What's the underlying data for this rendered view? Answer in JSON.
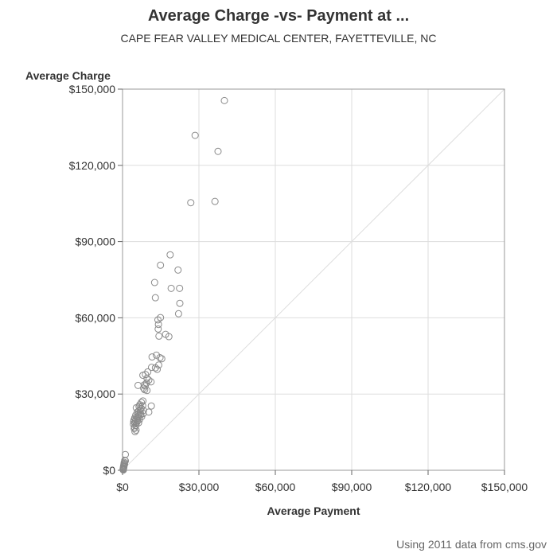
{
  "chart_data": {
    "type": "scatter",
    "title": "Average Charge -vs- Payment at ...",
    "subtitle": "CAPE FEAR VALLEY MEDICAL CENTER, FAYETTEVILLE, NC",
    "xlabel": "Average Payment",
    "ylabel": "Average Charge",
    "xlim": [
      0,
      150000
    ],
    "ylim": [
      0,
      150000
    ],
    "x_ticks": [
      0,
      30000,
      60000,
      90000,
      120000,
      150000
    ],
    "y_ticks": [
      0,
      30000,
      60000,
      90000,
      120000,
      150000
    ],
    "x_tick_labels": [
      "$0",
      "$30,000",
      "$60,000",
      "$90,000",
      "$120,000",
      "$150,000"
    ],
    "y_tick_labels": [
      "$0",
      "$30,000",
      "$60,000",
      "$90,000",
      "$120,000",
      "$150,000"
    ],
    "grid": true,
    "reference_line": "y = x",
    "colors": {
      "marker": "#8a8a8a",
      "grid": "#dddddd",
      "reference": "#dddddd",
      "frame": "#999999"
    },
    "points": [
      [
        40000,
        145500
      ],
      [
        28500,
        131800
      ],
      [
        37500,
        125500
      ],
      [
        26800,
        105300
      ],
      [
        36300,
        105800
      ],
      [
        18700,
        84800
      ],
      [
        14900,
        80700
      ],
      [
        21800,
        78800
      ],
      [
        12600,
        73900
      ],
      [
        19100,
        71600
      ],
      [
        22400,
        71600
      ],
      [
        12900,
        67900
      ],
      [
        22500,
        65700
      ],
      [
        14900,
        60100
      ],
      [
        22000,
        61600
      ],
      [
        13900,
        59200
      ],
      [
        14100,
        57400
      ],
      [
        14000,
        55600
      ],
      [
        16900,
        53500
      ],
      [
        18200,
        52600
      ],
      [
        14300,
        52800
      ],
      [
        13300,
        45300
      ],
      [
        14700,
        44300
      ],
      [
        11600,
        44600
      ],
      [
        15400,
        43900
      ],
      [
        14200,
        41400
      ],
      [
        11400,
        40500
      ],
      [
        12900,
        40300
      ],
      [
        13600,
        39700
      ],
      [
        9900,
        38700
      ],
      [
        9000,
        37700
      ],
      [
        8000,
        37400
      ],
      [
        9600,
        36200
      ],
      [
        10300,
        35500
      ],
      [
        11200,
        34800
      ],
      [
        9400,
        34300
      ],
      [
        8500,
        33600
      ],
      [
        8900,
        33200
      ],
      [
        6100,
        33400
      ],
      [
        8300,
        32300
      ],
      [
        8700,
        31700
      ],
      [
        9600,
        31400
      ],
      [
        8000,
        27300
      ],
      [
        7400,
        26700
      ],
      [
        6800,
        25800
      ],
      [
        7900,
        25400
      ],
      [
        6500,
        25100
      ],
      [
        11300,
        25300
      ],
      [
        5400,
        24600
      ],
      [
        7300,
        24400
      ],
      [
        6900,
        23900
      ],
      [
        8200,
        23600
      ],
      [
        6300,
        23300
      ],
      [
        5800,
        22900
      ],
      [
        10300,
        22900
      ],
      [
        7000,
        22600
      ],
      [
        8100,
        22300
      ],
      [
        6200,
        22000
      ],
      [
        7100,
        21800
      ],
      [
        5200,
        21700
      ],
      [
        6400,
        21300
      ],
      [
        7500,
        21100
      ],
      [
        5600,
        20900
      ],
      [
        4800,
        20600
      ],
      [
        6000,
        20400
      ],
      [
        5300,
        20100
      ],
      [
        6700,
        20000
      ],
      [
        4500,
        19800
      ],
      [
        5900,
        19500
      ],
      [
        5000,
        19300
      ],
      [
        4400,
        19100
      ],
      [
        5600,
        18900
      ],
      [
        6300,
        18700
      ],
      [
        4900,
        18500
      ],
      [
        4300,
        18100
      ],
      [
        5300,
        17700
      ],
      [
        4700,
        17000
      ],
      [
        4600,
        16400
      ],
      [
        5300,
        15800
      ],
      [
        4900,
        15200
      ],
      [
        1100,
        6200
      ],
      [
        900,
        3900
      ],
      [
        1100,
        3700
      ],
      [
        700,
        3100
      ],
      [
        600,
        2700
      ],
      [
        800,
        2400
      ],
      [
        500,
        2100
      ],
      [
        600,
        1800
      ],
      [
        400,
        1500
      ],
      [
        500,
        1200
      ],
      [
        300,
        900
      ],
      [
        400,
        700
      ],
      [
        300,
        500
      ],
      [
        200,
        300
      ],
      [
        300,
        100
      ]
    ]
  },
  "footnote": "Using 2011 data from cms.gov"
}
